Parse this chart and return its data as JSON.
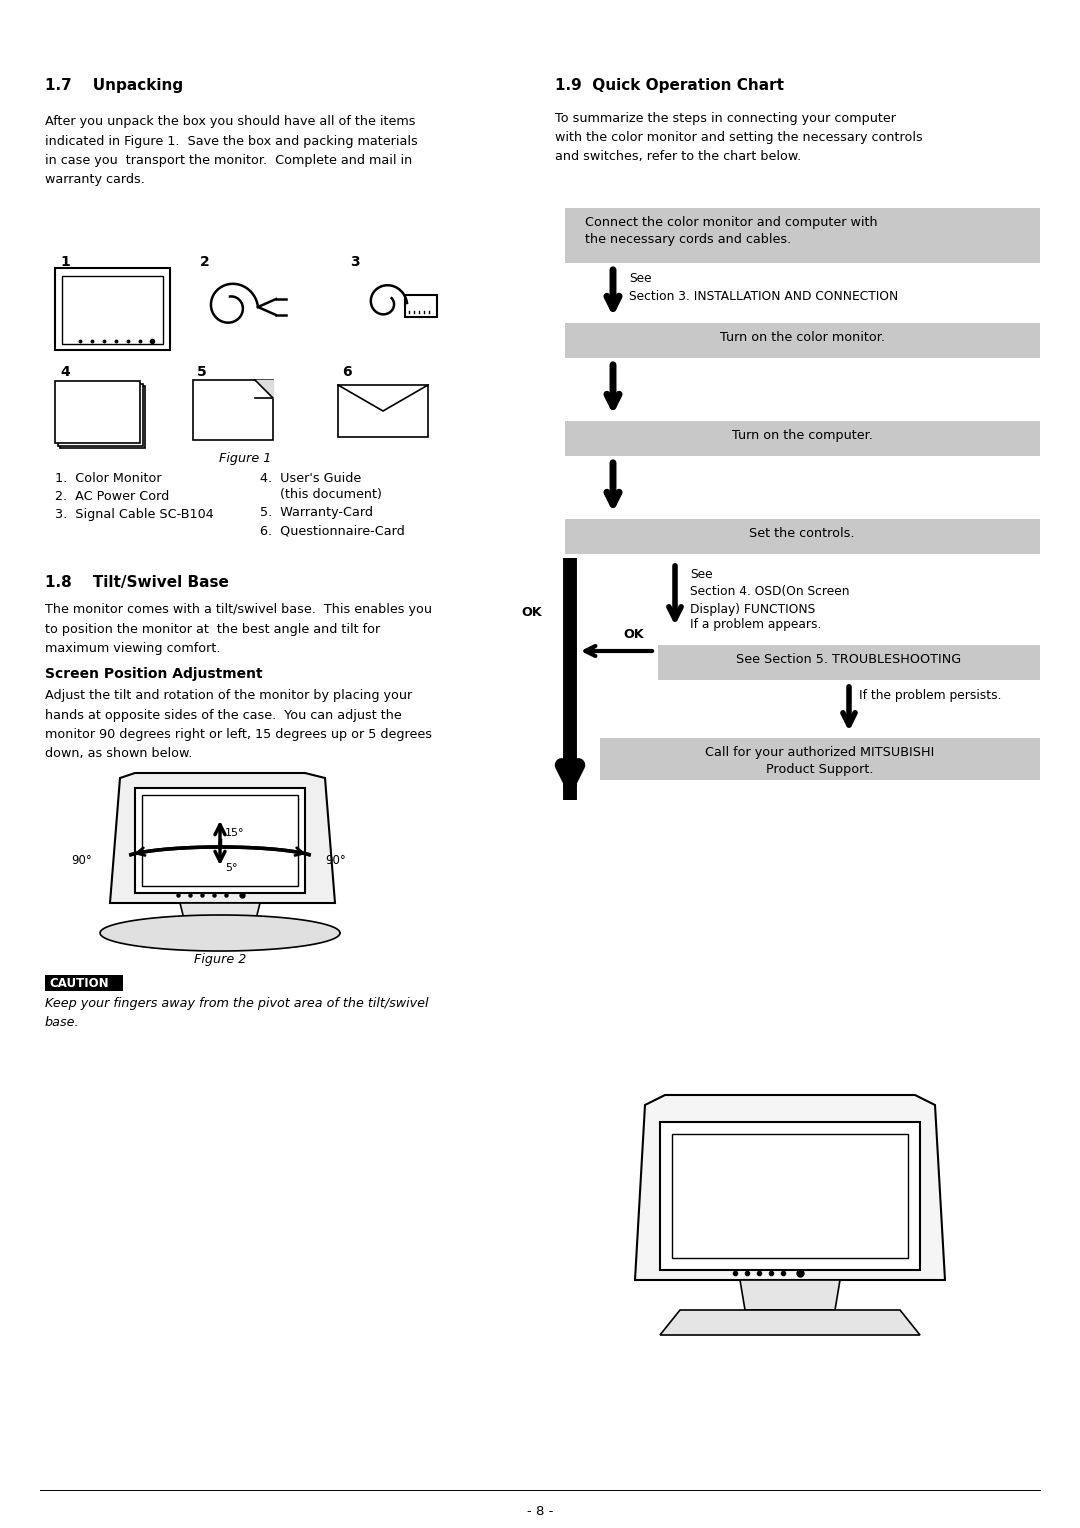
{
  "page_bg": "#ffffff",
  "text_color": "#000000",
  "box_color": "#c8c8c8",
  "section_17_title": "1.7    Unpacking",
  "section_17_body": "After you unpack the box you should have all of the items\nindicated in Figure 1.  Save the box and packing materials\nin case you  transport the monitor.  Complete and mail in\nwarranty cards.",
  "figure1_label": "Figure 1",
  "items_list_left": [
    "1.  Color Monitor",
    "2.  AC Power Cord",
    "3.  Signal Cable SC-B104"
  ],
  "items_list_right": [
    "4.  User's Guide",
    "     (this document)",
    "5.  Warranty-Card",
    "6.  Questionnaire-Card"
  ],
  "section_18_title": "1.8    Tilt/Swivel Base",
  "section_18_body": "The monitor comes with a tilt/swivel base.  This enables you\nto position the monitor at  the best angle and tilt for\nmaximum viewing comfort.",
  "screen_pos_title": "Screen Position Adjustment",
  "screen_pos_body": "Adjust the tilt and rotation of the monitor by placing your\nhands at opposite sides of the case.  You can adjust the\nmonitor 90 degrees right or left, 15 degrees up or 5 degrees\ndown, as shown below.",
  "figure2_label": "Figure 2",
  "caution_title": "CAUTION",
  "caution_body": "Keep your fingers away from the pivot area of the tilt/swivel\nbase.",
  "section_19_title": "1.9  Quick Operation Chart",
  "section_19_body": "To summarize the steps in connecting your computer\nwith the color monitor and setting the necessary controls\nand switches, refer to the chart below.",
  "flow_box1": "Connect the color monitor and computer with\nthe necessary cords and cables.",
  "flow_box2": "Turn on the color monitor.",
  "flow_box3": "Turn on the computer.",
  "flow_box4": "Set the controls.",
  "flow_box5": "See Section 5. TROUBLESHOOTING",
  "flow_box6": "Call for your authorized MITSUBISHI\nProduct Support.",
  "flow_note1": "See\nSection 3. INSTALLATION AND CONNECTION",
  "flow_note2": "See\nSection 4. OSD(On Screen\nDisplay) FUNCTIONS",
  "flow_note3": "If a problem appears.",
  "flow_note4": "If the problem persists.",
  "page_number": "- 8 -"
}
